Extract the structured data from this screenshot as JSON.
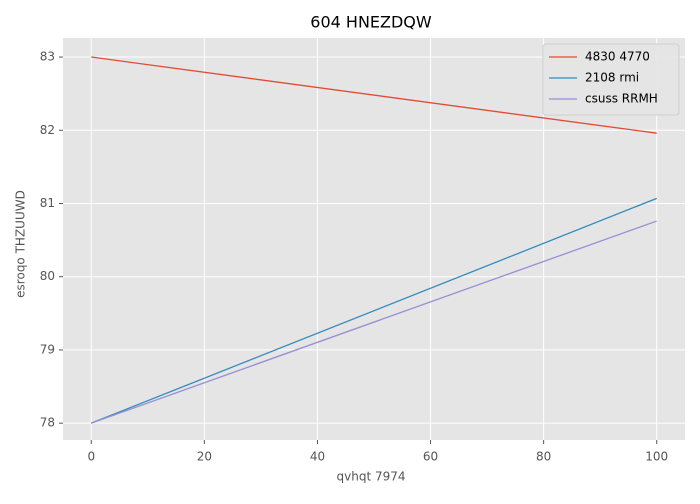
{
  "chart_data": {
    "type": "line",
    "title": "604 HNEZDQW",
    "x_label": "qvhqt 7974",
    "y_label": "esroqo THZUUWD",
    "x": [
      0,
      100
    ],
    "series": [
      {
        "name": "4830 4770",
        "color": "#E24A33",
        "values": [
          83,
          81.96
        ]
      },
      {
        "name": "2108 rmi",
        "color": "#348ABD",
        "values": [
          78,
          81.07
        ]
      },
      {
        "name": "csuss RRMH",
        "color": "#988ED5",
        "values": [
          78,
          80.76
        ]
      }
    ],
    "xlim": [
      -5,
      105
    ],
    "ylim": [
      77.77,
      83.26
    ],
    "xticks": [
      0,
      20,
      40,
      60,
      80,
      100
    ],
    "yticks": [
      78,
      79,
      80,
      81,
      82,
      83
    ],
    "grid": true,
    "legend": "upper right"
  }
}
